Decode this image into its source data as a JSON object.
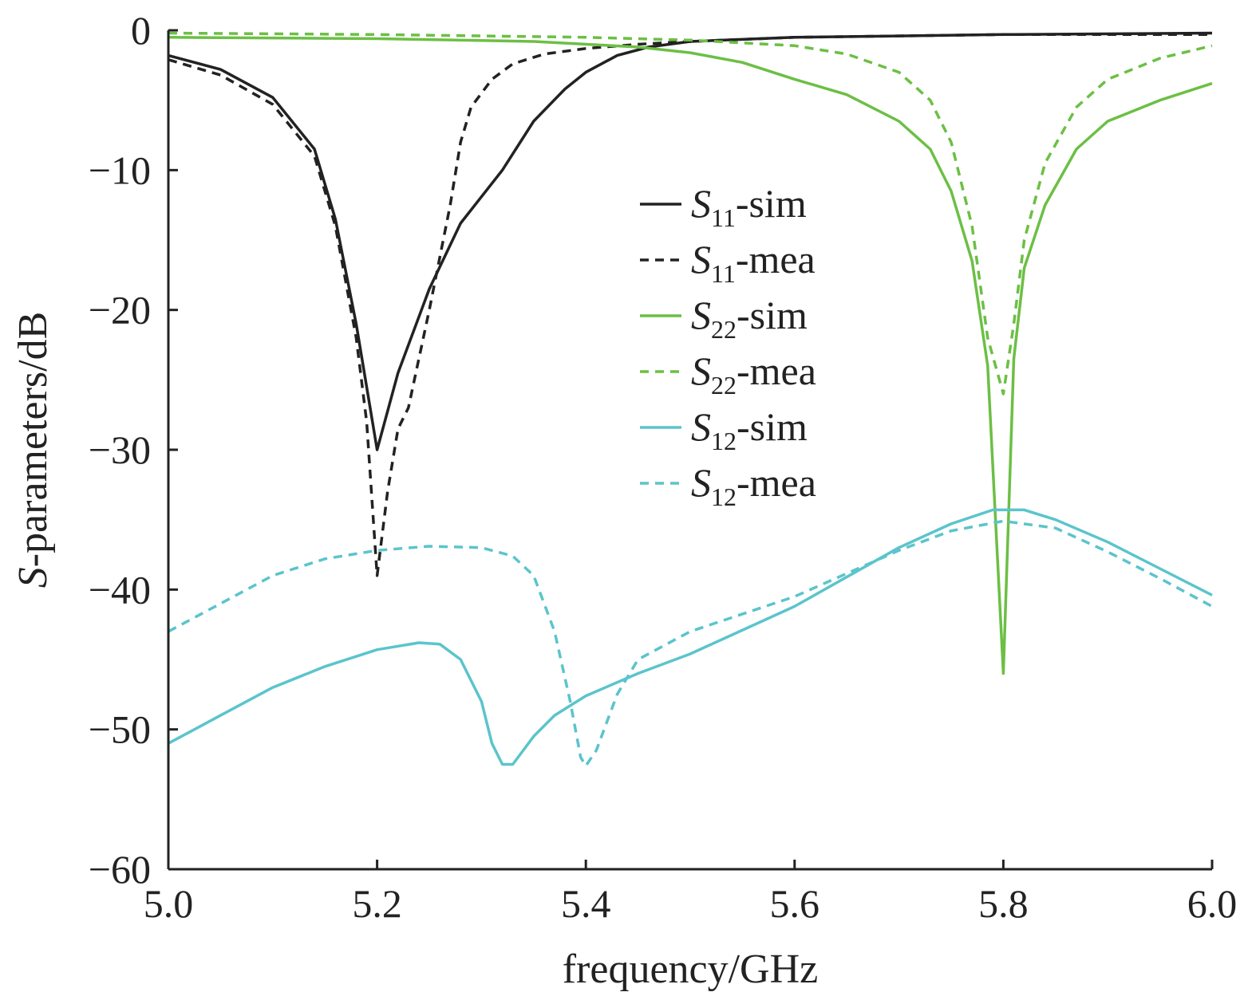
{
  "chart_data": {
    "type": "line",
    "xlabel": "frequency/GHz",
    "ylabel_italic": "S",
    "ylabel_rest": "-parameters/dB",
    "xlim": [
      5.0,
      6.0
    ],
    "ylim": [
      -60,
      0
    ],
    "xticks": [
      5.0,
      5.2,
      5.4,
      5.6,
      5.8,
      6.0
    ],
    "xtick_labels": [
      "5.0",
      "5.2",
      "5.4",
      "5.6",
      "5.8",
      "6.0"
    ],
    "yticks": [
      0,
      -10,
      -20,
      -30,
      -40,
      -50,
      -60
    ],
    "ytick_labels": [
      "0",
      "−10",
      "−20",
      "−30",
      "−40",
      "−50",
      "−60"
    ],
    "grid": false,
    "legend_position": "center-right",
    "series": [
      {
        "name_italic": "S",
        "name_sub": "11",
        "name_suffix": "-sim",
        "color": "#222222",
        "dash": "solid",
        "points": [
          [
            5.0,
            -1.8
          ],
          [
            5.05,
            -2.8
          ],
          [
            5.1,
            -4.8
          ],
          [
            5.14,
            -8.5
          ],
          [
            5.16,
            -13.5
          ],
          [
            5.18,
            -21
          ],
          [
            5.2,
            -30
          ],
          [
            5.22,
            -24.5
          ],
          [
            5.25,
            -18.5
          ],
          [
            5.28,
            -13.8
          ],
          [
            5.32,
            -10
          ],
          [
            5.35,
            -6.5
          ],
          [
            5.38,
            -4.2
          ],
          [
            5.4,
            -3.0
          ],
          [
            5.43,
            -1.8
          ],
          [
            5.46,
            -1.2
          ],
          [
            5.5,
            -0.8
          ],
          [
            5.6,
            -0.5
          ],
          [
            5.8,
            -0.3
          ],
          [
            6.0,
            -0.2
          ]
        ]
      },
      {
        "name_italic": "S",
        "name_sub": "11",
        "name_suffix": "-mea",
        "color": "#222222",
        "dash": "dashed",
        "points": [
          [
            5.0,
            -2.1
          ],
          [
            5.05,
            -3.2
          ],
          [
            5.1,
            -5.3
          ],
          [
            5.14,
            -9.0
          ],
          [
            5.16,
            -14
          ],
          [
            5.18,
            -22
          ],
          [
            5.19,
            -28
          ],
          [
            5.2,
            -39
          ],
          [
            5.21,
            -33
          ],
          [
            5.22,
            -28.5
          ],
          [
            5.23,
            -27
          ],
          [
            5.25,
            -20
          ],
          [
            5.27,
            -12.5
          ],
          [
            5.28,
            -8
          ],
          [
            5.29,
            -5.5
          ],
          [
            5.31,
            -3.5
          ],
          [
            5.33,
            -2.4
          ],
          [
            5.36,
            -1.7
          ],
          [
            5.4,
            -1.3
          ],
          [
            5.45,
            -1.0
          ],
          [
            5.5,
            -0.8
          ],
          [
            5.6,
            -0.5
          ],
          [
            5.8,
            -0.3
          ],
          [
            6.0,
            -0.3
          ]
        ]
      },
      {
        "name_italic": "S",
        "name_sub": "22",
        "name_suffix": "-sim",
        "color": "#6cbf45",
        "dash": "solid",
        "points": [
          [
            5.0,
            -0.5
          ],
          [
            5.2,
            -0.6
          ],
          [
            5.35,
            -0.8
          ],
          [
            5.45,
            -1.2
          ],
          [
            5.5,
            -1.6
          ],
          [
            5.55,
            -2.3
          ],
          [
            5.6,
            -3.5
          ],
          [
            5.65,
            -4.6
          ],
          [
            5.7,
            -6.5
          ],
          [
            5.73,
            -8.5
          ],
          [
            5.75,
            -11.5
          ],
          [
            5.77,
            -16.5
          ],
          [
            5.785,
            -24
          ],
          [
            5.8,
            -46
          ],
          [
            5.81,
            -23.5
          ],
          [
            5.82,
            -17
          ],
          [
            5.84,
            -12.5
          ],
          [
            5.87,
            -8.5
          ],
          [
            5.9,
            -6.5
          ],
          [
            5.95,
            -5
          ],
          [
            6.0,
            -3.8
          ]
        ]
      },
      {
        "name_italic": "S",
        "name_sub": "22",
        "name_suffix": "-mea",
        "color": "#6cbf45",
        "dash": "dashed",
        "points": [
          [
            5.0,
            -0.2
          ],
          [
            5.2,
            -0.3
          ],
          [
            5.4,
            -0.5
          ],
          [
            5.5,
            -0.7
          ],
          [
            5.6,
            -1.1
          ],
          [
            5.65,
            -1.7
          ],
          [
            5.7,
            -3.0
          ],
          [
            5.73,
            -5
          ],
          [
            5.75,
            -8
          ],
          [
            5.77,
            -14
          ],
          [
            5.785,
            -22
          ],
          [
            5.8,
            -26
          ],
          [
            5.81,
            -21
          ],
          [
            5.82,
            -15
          ],
          [
            5.84,
            -9.5
          ],
          [
            5.87,
            -5.5
          ],
          [
            5.9,
            -3.5
          ],
          [
            5.95,
            -2
          ],
          [
            6.0,
            -1.1
          ]
        ]
      },
      {
        "name_italic": "S",
        "name_sub": "12",
        "name_suffix": "-sim",
        "color": "#5bc4cc",
        "dash": "solid",
        "points": [
          [
            5.0,
            -51
          ],
          [
            5.05,
            -49
          ],
          [
            5.1,
            -47
          ],
          [
            5.15,
            -45.5
          ],
          [
            5.2,
            -44.3
          ],
          [
            5.24,
            -43.8
          ],
          [
            5.26,
            -43.9
          ],
          [
            5.28,
            -45
          ],
          [
            5.3,
            -48
          ],
          [
            5.31,
            -51
          ],
          [
            5.32,
            -52.5
          ],
          [
            5.33,
            -52.5
          ],
          [
            5.35,
            -50.5
          ],
          [
            5.37,
            -49
          ],
          [
            5.4,
            -47.6
          ],
          [
            5.45,
            -46
          ],
          [
            5.5,
            -44.6
          ],
          [
            5.6,
            -41.2
          ],
          [
            5.7,
            -37
          ],
          [
            5.75,
            -35.3
          ],
          [
            5.79,
            -34.3
          ],
          [
            5.82,
            -34.3
          ],
          [
            5.85,
            -35
          ],
          [
            5.9,
            -36.6
          ],
          [
            5.95,
            -38.5
          ],
          [
            6.0,
            -40.4
          ]
        ]
      },
      {
        "name_italic": "S",
        "name_sub": "12",
        "name_suffix": "-mea",
        "color": "#5bc4cc",
        "dash": "dashed",
        "points": [
          [
            5.0,
            -43
          ],
          [
            5.05,
            -41
          ],
          [
            5.1,
            -39
          ],
          [
            5.15,
            -37.8
          ],
          [
            5.2,
            -37.2
          ],
          [
            5.25,
            -36.9
          ],
          [
            5.3,
            -37
          ],
          [
            5.33,
            -37.6
          ],
          [
            5.35,
            -39
          ],
          [
            5.37,
            -43
          ],
          [
            5.385,
            -48
          ],
          [
            5.395,
            -52
          ],
          [
            5.4,
            -52.6
          ],
          [
            5.41,
            -51.5
          ],
          [
            5.43,
            -47.5
          ],
          [
            5.45,
            -45
          ],
          [
            5.5,
            -43
          ],
          [
            5.6,
            -40.5
          ],
          [
            5.7,
            -37.2
          ],
          [
            5.75,
            -35.8
          ],
          [
            5.8,
            -35.1
          ],
          [
            5.85,
            -35.6
          ],
          [
            5.9,
            -37.3
          ],
          [
            5.95,
            -39.2
          ],
          [
            6.0,
            -41.2
          ]
        ]
      }
    ]
  }
}
